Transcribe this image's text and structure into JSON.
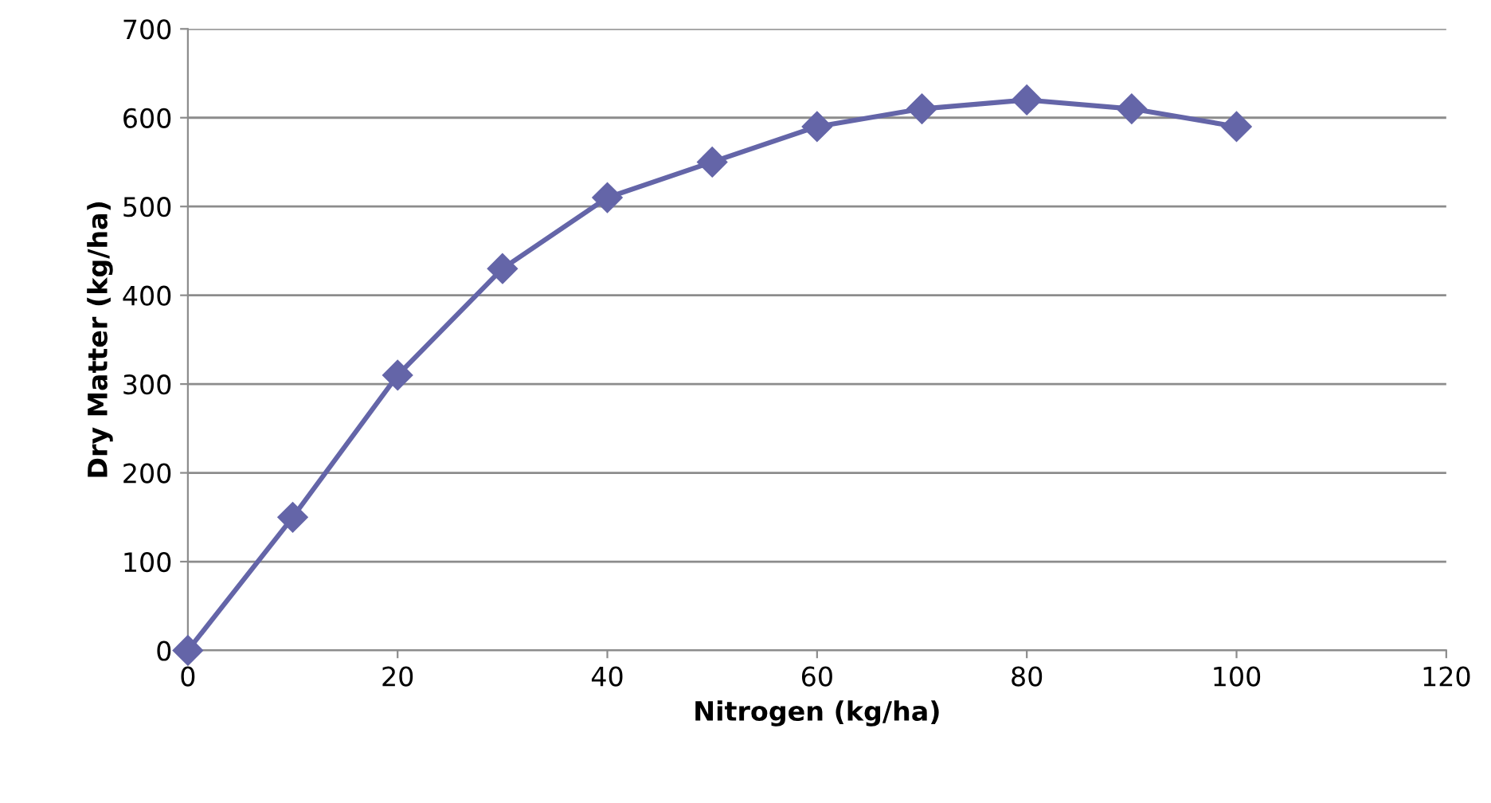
{
  "chart_data": {
    "type": "line",
    "xlabel": "Nitrogen (kg/ha)",
    "ylabel": "Dry Matter (kg/ha)",
    "x": [
      0,
      10,
      20,
      30,
      40,
      50,
      60,
      70,
      80,
      90,
      100
    ],
    "series": [
      {
        "color": "#6465a8",
        "values": [
          0,
          150,
          310,
          430,
          510,
          550,
          590,
          610,
          620,
          610,
          590
        ]
      }
    ],
    "xlim": [
      0,
      120
    ],
    "xticks": [
      0,
      20,
      40,
      60,
      80,
      100,
      120
    ],
    "ylim": [
      0,
      700
    ],
    "yticks": [
      0,
      100,
      200,
      300,
      400,
      500,
      600,
      700
    ],
    "grid": "y",
    "marker": "diamond",
    "line_style": "solid"
  }
}
